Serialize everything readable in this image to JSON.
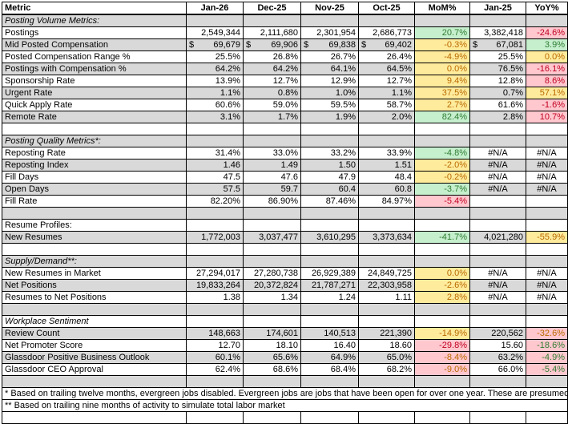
{
  "formats": {
    "green": {
      "bg": "#c6efce",
      "fg": "#2e7d32"
    },
    "red": {
      "bg": "#ffc7ce",
      "fg": "#c00020"
    },
    "yellow": {
      "bg": "#ffeb9c",
      "fg": "#b86a00"
    },
    "red-green": {
      "bg": "#ffc7ce",
      "fg": "#2e7d32"
    },
    "red-orange": {
      "bg": "#ffc7ce",
      "fg": "#b86a00"
    }
  },
  "header": [
    "Metric",
    "Jan-26",
    "Dec-25",
    "Nov-25",
    "Oct-25",
    "MoM%",
    "Jan-25",
    "YoY%"
  ],
  "rows": [
    {
      "type": "section",
      "label": "Posting Volume Metrics:",
      "italic": true
    },
    {
      "type": "metric",
      "label": "Postings",
      "values": [
        "2,549,344",
        "2,111,680",
        "2,301,954",
        "2,686,773",
        "20.7%",
        "3,382,418",
        "-24.6%"
      ],
      "mom_style": "green",
      "yoy_style": "red"
    },
    {
      "type": "metric",
      "label": "Mid Posted Compensation",
      "currency": "$",
      "values": [
        "69,679",
        "69,906",
        "69,838",
        "69,402",
        "-0.3%",
        "67,081",
        "3.9%"
      ],
      "mom_style": "yellow",
      "yoy_style": "green"
    },
    {
      "type": "metric",
      "label": "Posted Compensation Range %",
      "values": [
        "25.5%",
        "26.8%",
        "26.7%",
        "26.4%",
        "-4.9%",
        "25.5%",
        "0.0%"
      ],
      "mom_style": "yellow",
      "yoy_style": "yellow"
    },
    {
      "type": "metric",
      "label": "Postings with Compensation %",
      "values": [
        "64.2%",
        "64.2%",
        "64.1%",
        "64.5%",
        "0.0%",
        "76.5%",
        "-16.1%"
      ],
      "mom_style": "yellow",
      "yoy_style": "red"
    },
    {
      "type": "metric",
      "label": "Sponsorship Rate",
      "values": [
        "13.9%",
        "12.7%",
        "12.9%",
        "12.7%",
        "9.4%",
        "12.8%",
        "8.6%"
      ],
      "mom_style": "yellow",
      "yoy_style": "red"
    },
    {
      "type": "metric",
      "label": "Urgent Rate",
      "values": [
        "1.1%",
        "0.8%",
        "1.0%",
        "1.1%",
        "37.5%",
        "0.7%",
        "57.1%"
      ],
      "mom_style": "yellow",
      "yoy_style": "yellow"
    },
    {
      "type": "metric",
      "label": "Quick Apply Rate",
      "values": [
        "60.6%",
        "59.0%",
        "59.5%",
        "58.7%",
        "2.7%",
        "61.6%",
        "-1.6%"
      ],
      "mom_style": "yellow",
      "yoy_style": "red"
    },
    {
      "type": "metric",
      "label": "Remote Rate",
      "values": [
        "3.1%",
        "1.7%",
        "1.9%",
        "2.0%",
        "82.4%",
        "2.8%",
        "10.7%"
      ],
      "mom_style": "green",
      "yoy_style": "red"
    },
    {
      "type": "blank"
    },
    {
      "type": "section",
      "label": "Posting Quality Metrics*:",
      "italic": true
    },
    {
      "type": "metric",
      "label": "Reposting Rate",
      "values": [
        "31.4%",
        "33.0%",
        "33.2%",
        "33.9%",
        "-4.8%",
        "#N/A",
        "#N/A"
      ],
      "mom_style": "green"
    },
    {
      "type": "metric",
      "label": "Reposting Index",
      "values": [
        "1.46",
        "1.49",
        "1.50",
        "1.51",
        "-2.0%",
        "#N/A",
        "#N/A"
      ],
      "mom_style": "yellow"
    },
    {
      "type": "metric",
      "label": "Fill Days",
      "values": [
        "47.5",
        "47.6",
        "47.9",
        "48.4",
        "-0.2%",
        "#N/A",
        "#N/A"
      ],
      "mom_style": "yellow"
    },
    {
      "type": "metric",
      "label": "Open Days",
      "values": [
        "57.5",
        "59.7",
        "60.4",
        "60.8",
        "-3.7%",
        "#N/A",
        "#N/A"
      ],
      "mom_style": "green"
    },
    {
      "type": "metric",
      "label": "Fill Rate",
      "values": [
        "82.20%",
        "86.90%",
        "87.46%",
        "84.97%",
        "-5.4%",
        "",
        ""
      ],
      "mom_style": "red"
    },
    {
      "type": "blank"
    },
    {
      "type": "section",
      "label": "Resume Profiles:",
      "italic": false
    },
    {
      "type": "metric",
      "label": "New Resumes",
      "values": [
        "1,772,003",
        "3,037,477",
        "3,610,295",
        "3,373,634",
        "-41.7%",
        "4,021,280",
        "-55.9%"
      ],
      "mom_style": "green",
      "yoy_style": "yellow"
    },
    {
      "type": "blank"
    },
    {
      "type": "section",
      "label": "Supply/Demand**:",
      "italic": true
    },
    {
      "type": "metric",
      "label": "New Resumes in Market",
      "values": [
        "27,294,017",
        "27,280,738",
        "26,929,389",
        "24,849,725",
        "0.0%",
        "#N/A",
        "#N/A"
      ],
      "mom_style": "yellow"
    },
    {
      "type": "metric",
      "label": "Net Positions",
      "values": [
        "19,833,264",
        "20,372,824",
        "21,787,271",
        "22,303,958",
        "-2.6%",
        "#N/A",
        "#N/A"
      ],
      "mom_style": "yellow"
    },
    {
      "type": "metric",
      "label": "Resumes to Net Positions",
      "values": [
        "1.38",
        "1.34",
        "1.24",
        "1.11",
        "2.8%",
        "#N/A",
        "#N/A"
      ],
      "mom_style": "yellow"
    },
    {
      "type": "blank"
    },
    {
      "type": "section",
      "label": "Workplace Sentiment",
      "italic": true
    },
    {
      "type": "metric",
      "label": "Review Count",
      "values": [
        "148,663",
        "174,601",
        "140,513",
        "221,390",
        "-14.9%",
        "220,562",
        "-32.6%"
      ],
      "mom_style": "yellow",
      "yoy_style": "red-orange"
    },
    {
      "type": "metric",
      "label": "Net Promoter Score",
      "values": [
        "12.70",
        "18.10",
        "16.40",
        "18.60",
        "-29.8%",
        "15.60",
        "-18.6%"
      ],
      "mom_style": "red",
      "yoy_style": "red-green"
    },
    {
      "type": "metric",
      "label": "Glassdoor Positive Business Outlook",
      "values": [
        "60.1%",
        "65.6%",
        "64.9%",
        "65.0%",
        "-8.4%",
        "63.2%",
        "-4.9%"
      ],
      "mom_style": "red-orange",
      "yoy_style": "red-green"
    },
    {
      "type": "metric",
      "label": "Glassdoor CEO Approval",
      "values": [
        "62.4%",
        "68.6%",
        "68.4%",
        "68.2%",
        "-9.0%",
        "66.0%",
        "-5.4%"
      ],
      "mom_style": "red-orange",
      "yoy_style": "red-green"
    },
    {
      "type": "blank"
    },
    {
      "type": "note",
      "label": "* Based on trailing twelve months, evergreen jobs disabled. Evergreen jobs are jobs that have been open for over one year. These are presumed to be evergreen."
    },
    {
      "type": "note",
      "label": "** Based on trailing nine months of activity to simulate total labor market"
    },
    {
      "type": "blank"
    }
  ]
}
